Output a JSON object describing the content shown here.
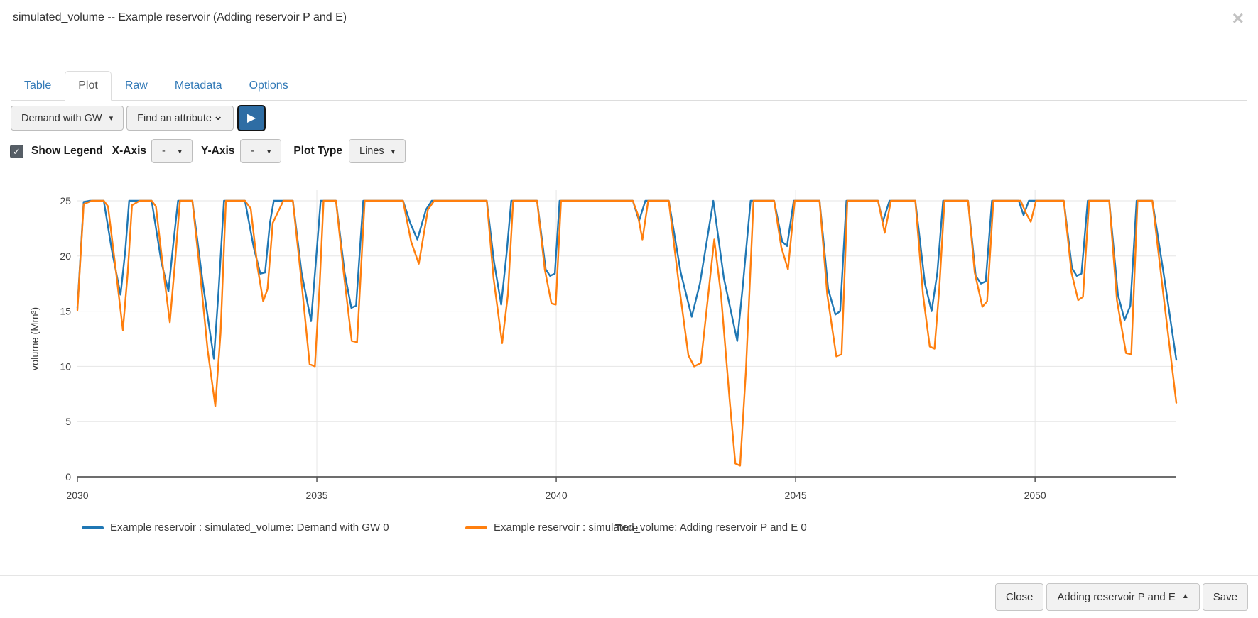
{
  "header": {
    "title": "simulated_volume -- Example reservoir (Adding reservoir P and E)"
  },
  "icons": {
    "close": "×",
    "caret_down": "▾",
    "chevron_down": "⌄",
    "play": "▶",
    "check": "✓",
    "caret_up": "▲"
  },
  "tabs": [
    {
      "label": "Table",
      "active": false
    },
    {
      "label": "Plot",
      "active": true
    },
    {
      "label": "Raw",
      "active": false
    },
    {
      "label": "Metadata",
      "active": false
    },
    {
      "label": "Options",
      "active": false
    }
  ],
  "toolbar": {
    "scenario_dropdown_label": "Demand with GW",
    "attribute_dropdown_label": "Find an attribute"
  },
  "plot_controls": {
    "show_legend_label": "Show Legend",
    "show_legend_checked": true,
    "x_axis_label": "X-Axis",
    "x_axis_value": "-",
    "y_axis_label": "Y-Axis",
    "y_axis_value": "-",
    "plot_type_label": "Plot Type",
    "plot_type_value": "Lines"
  },
  "chart_data": {
    "type": "line",
    "title": "",
    "xlabel": "Time",
    "ylabel": "volume (Mm³)",
    "x_range": [
      2030,
      2052.95
    ],
    "y_range": [
      0,
      25
    ],
    "x_ticks": [
      2030,
      2035,
      2040,
      2045,
      2050
    ],
    "y_ticks": [
      0,
      5,
      10,
      15,
      20,
      25
    ],
    "grid": true,
    "legend_position": "below",
    "note": "x = decimal year, y = volume in Mm3; piecewise breakpoints of monthly series",
    "series": [
      {
        "name": "Example reservoir : simulated_volume: Demand with GW 0",
        "color": "#1f77b4",
        "points": [
          [
            2030.0,
            15.3
          ],
          [
            2030.13,
            24.9
          ],
          [
            2030.25,
            25
          ],
          [
            2030.55,
            25
          ],
          [
            2030.72,
            20.5
          ],
          [
            2030.9,
            16.5
          ],
          [
            2031.0,
            20.5
          ],
          [
            2031.08,
            25
          ],
          [
            2031.55,
            25
          ],
          [
            2031.75,
            19.5
          ],
          [
            2031.9,
            16.8
          ],
          [
            2032.0,
            21
          ],
          [
            2032.1,
            25
          ],
          [
            2032.4,
            25
          ],
          [
            2032.62,
            17.5
          ],
          [
            2032.85,
            10.7
          ],
          [
            2032.95,
            17
          ],
          [
            2033.06,
            25
          ],
          [
            2033.5,
            25
          ],
          [
            2033.68,
            20.8
          ],
          [
            2033.82,
            18.4
          ],
          [
            2033.92,
            18.5
          ],
          [
            2034.02,
            23
          ],
          [
            2034.1,
            25
          ],
          [
            2034.5,
            25
          ],
          [
            2034.68,
            18.5
          ],
          [
            2034.88,
            14.1
          ],
          [
            2034.98,
            19.5
          ],
          [
            2035.08,
            25
          ],
          [
            2035.4,
            25
          ],
          [
            2035.58,
            18.5
          ],
          [
            2035.72,
            15.3
          ],
          [
            2035.82,
            15.5
          ],
          [
            2035.97,
            25
          ],
          [
            2036.8,
            25
          ],
          [
            2036.95,
            23
          ],
          [
            2037.1,
            21.5
          ],
          [
            2037.28,
            24.2
          ],
          [
            2037.4,
            25
          ],
          [
            2038.55,
            25
          ],
          [
            2038.7,
            19.5
          ],
          [
            2038.85,
            15.6
          ],
          [
            2038.97,
            20.5
          ],
          [
            2039.06,
            25
          ],
          [
            2039.6,
            25
          ],
          [
            2039.78,
            18.8
          ],
          [
            2039.87,
            18.2
          ],
          [
            2039.97,
            18.4
          ],
          [
            2040.07,
            25
          ],
          [
            2041.6,
            25
          ],
          [
            2041.73,
            23.2
          ],
          [
            2041.86,
            25
          ],
          [
            2042.35,
            25
          ],
          [
            2042.6,
            18.5
          ],
          [
            2042.83,
            14.5
          ],
          [
            2043.0,
            17.5
          ],
          [
            2043.28,
            25
          ],
          [
            2043.5,
            18
          ],
          [
            2043.78,
            12.3
          ],
          [
            2043.9,
            17.5
          ],
          [
            2044.06,
            25
          ],
          [
            2044.55,
            25
          ],
          [
            2044.72,
            21.3
          ],
          [
            2044.82,
            20.9
          ],
          [
            2044.96,
            25
          ],
          [
            2045.5,
            25
          ],
          [
            2045.68,
            17
          ],
          [
            2045.83,
            14.7
          ],
          [
            2045.93,
            15
          ],
          [
            2046.06,
            25
          ],
          [
            2046.72,
            25
          ],
          [
            2046.82,
            23.1
          ],
          [
            2046.96,
            25
          ],
          [
            2047.5,
            25
          ],
          [
            2047.7,
            17.5
          ],
          [
            2047.84,
            15.0
          ],
          [
            2047.96,
            18.5
          ],
          [
            2048.08,
            25
          ],
          [
            2048.6,
            25
          ],
          [
            2048.76,
            18.2
          ],
          [
            2048.87,
            17.5
          ],
          [
            2048.97,
            17.7
          ],
          [
            2049.1,
            25
          ],
          [
            2049.66,
            25
          ],
          [
            2049.76,
            23.7
          ],
          [
            2049.87,
            25
          ],
          [
            2050.6,
            25
          ],
          [
            2050.77,
            18.9
          ],
          [
            2050.87,
            18.2
          ],
          [
            2050.97,
            18.4
          ],
          [
            2051.1,
            25
          ],
          [
            2051.55,
            25
          ],
          [
            2051.73,
            16.5
          ],
          [
            2051.87,
            14.2
          ],
          [
            2051.99,
            15.5
          ],
          [
            2052.12,
            25
          ],
          [
            2052.45,
            25
          ],
          [
            2052.7,
            18
          ],
          [
            2052.95,
            10.6
          ]
        ]
      },
      {
        "name": "Example reservoir : simulated_volume: Adding reservoir P and E 0",
        "color": "#ff7f0e",
        "points": [
          [
            2030.0,
            15.1
          ],
          [
            2030.13,
            24.7
          ],
          [
            2030.3,
            25
          ],
          [
            2030.55,
            25
          ],
          [
            2030.64,
            24.5
          ],
          [
            2030.78,
            19.5
          ],
          [
            2030.95,
            13.3
          ],
          [
            2031.05,
            18.5
          ],
          [
            2031.14,
            24.6
          ],
          [
            2031.3,
            25
          ],
          [
            2031.55,
            25
          ],
          [
            2031.64,
            24.5
          ],
          [
            2031.8,
            18.5
          ],
          [
            2031.93,
            14.0
          ],
          [
            2032.04,
            19.5
          ],
          [
            2032.14,
            25
          ],
          [
            2032.4,
            25
          ],
          [
            2032.56,
            18.5
          ],
          [
            2032.72,
            11.5
          ],
          [
            2032.88,
            6.4
          ],
          [
            2032.99,
            13
          ],
          [
            2033.1,
            25
          ],
          [
            2033.5,
            25
          ],
          [
            2033.62,
            24.3
          ],
          [
            2033.76,
            19
          ],
          [
            2033.88,
            15.9
          ],
          [
            2033.97,
            17
          ],
          [
            2034.08,
            23
          ],
          [
            2034.3,
            25
          ],
          [
            2034.5,
            25
          ],
          [
            2034.66,
            18.5
          ],
          [
            2034.85,
            10.2
          ],
          [
            2034.96,
            10.0
          ],
          [
            2035.06,
            17.5
          ],
          [
            2035.14,
            25
          ],
          [
            2035.4,
            25
          ],
          [
            2035.56,
            18.5
          ],
          [
            2035.73,
            12.3
          ],
          [
            2035.84,
            12.2
          ],
          [
            2036.0,
            25
          ],
          [
            2036.8,
            25
          ],
          [
            2036.97,
            21.3
          ],
          [
            2037.13,
            19.3
          ],
          [
            2037.32,
            24.2
          ],
          [
            2037.45,
            25
          ],
          [
            2038.55,
            25
          ],
          [
            2038.69,
            18
          ],
          [
            2038.87,
            12.1
          ],
          [
            2038.99,
            16.5
          ],
          [
            2039.1,
            25
          ],
          [
            2039.6,
            25
          ],
          [
            2039.76,
            18.8
          ],
          [
            2039.9,
            15.7
          ],
          [
            2039.99,
            15.6
          ],
          [
            2040.1,
            25
          ],
          [
            2041.6,
            25
          ],
          [
            2041.7,
            23.8
          ],
          [
            2041.8,
            21.5
          ],
          [
            2041.92,
            25
          ],
          [
            2042.35,
            25
          ],
          [
            2042.56,
            17.5
          ],
          [
            2042.76,
            11
          ],
          [
            2042.88,
            10.0
          ],
          [
            2043.02,
            10.3
          ],
          [
            2043.3,
            21.5
          ],
          [
            2043.44,
            16.5
          ],
          [
            2043.62,
            7
          ],
          [
            2043.74,
            1.2
          ],
          [
            2043.84,
            1.0
          ],
          [
            2043.96,
            9.5
          ],
          [
            2044.12,
            25
          ],
          [
            2044.55,
            25
          ],
          [
            2044.7,
            20.8
          ],
          [
            2044.84,
            18.8
          ],
          [
            2044.98,
            25
          ],
          [
            2045.5,
            25
          ],
          [
            2045.66,
            16.5
          ],
          [
            2045.85,
            10.9
          ],
          [
            2045.96,
            11.1
          ],
          [
            2046.08,
            25
          ],
          [
            2046.72,
            25
          ],
          [
            2046.86,
            22.1
          ],
          [
            2046.99,
            25
          ],
          [
            2047.5,
            25
          ],
          [
            2047.66,
            16.5
          ],
          [
            2047.8,
            11.8
          ],
          [
            2047.9,
            11.6
          ],
          [
            2048.0,
            17
          ],
          [
            2048.11,
            25
          ],
          [
            2048.6,
            25
          ],
          [
            2048.74,
            18.5
          ],
          [
            2048.9,
            15.4
          ],
          [
            2049.0,
            15.9
          ],
          [
            2049.13,
            25
          ],
          [
            2049.7,
            25
          ],
          [
            2049.81,
            23.9
          ],
          [
            2049.91,
            23.1
          ],
          [
            2050.02,
            25
          ],
          [
            2050.6,
            25
          ],
          [
            2050.76,
            18.5
          ],
          [
            2050.9,
            16.0
          ],
          [
            2051.0,
            16.3
          ],
          [
            2051.13,
            25
          ],
          [
            2051.55,
            25
          ],
          [
            2051.71,
            16
          ],
          [
            2051.9,
            11.2
          ],
          [
            2052.01,
            11.1
          ],
          [
            2052.14,
            25
          ],
          [
            2052.45,
            25
          ],
          [
            2052.68,
            16.5
          ],
          [
            2052.95,
            6.7
          ]
        ]
      }
    ]
  },
  "footer": {
    "close_label": "Close",
    "scenario_label": "Adding reservoir P and E",
    "save_label": "Save"
  }
}
